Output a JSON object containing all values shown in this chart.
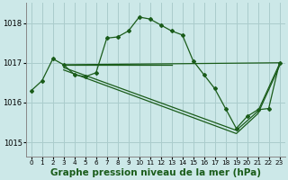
{
  "background_color": "#cce8e8",
  "grid_color": "#aacccc",
  "line_color": "#1a5c1a",
  "xlabel": "Graphe pression niveau de la mer (hPa)",
  "xlabel_fontsize": 7.5,
  "xlim": [
    -0.5,
    23.5
  ],
  "ylim": [
    1014.65,
    1018.5
  ],
  "yticks": [
    1015,
    1016,
    1017,
    1018
  ],
  "xticks": [
    0,
    1,
    2,
    3,
    4,
    5,
    6,
    7,
    8,
    9,
    10,
    11,
    12,
    13,
    14,
    15,
    16,
    17,
    18,
    19,
    20,
    21,
    22,
    23
  ],
  "curve1_x": [
    0,
    1,
    2,
    3,
    4,
    5,
    6,
    7,
    8,
    9,
    10,
    11,
    12,
    13,
    14,
    15,
    16,
    17,
    18,
    19,
    20,
    21,
    22,
    23
  ],
  "curve1_y": [
    1016.3,
    1016.55,
    1017.1,
    1016.95,
    1016.7,
    1016.65,
    1016.75,
    1017.62,
    1017.65,
    1017.8,
    1018.15,
    1018.1,
    1017.95,
    1017.8,
    1017.7,
    1017.05,
    1016.7,
    1016.35,
    1015.85,
    1015.35,
    1015.65,
    1015.82,
    1015.85,
    1017.0
  ],
  "flat_line_x": [
    3,
    13
  ],
  "flat_line_y": [
    1016.95,
    1016.95
  ],
  "diag_line1_x": [
    3,
    23
  ],
  "diag_line1_y": [
    1016.95,
    1017.0
  ],
  "diag_line2_x": [
    3,
    19,
    21,
    23
  ],
  "diag_line2_y": [
    1016.88,
    1015.3,
    1015.78,
    1016.97
  ],
  "diag_line3_x": [
    3,
    19,
    21,
    23
  ],
  "diag_line3_y": [
    1016.82,
    1015.22,
    1015.72,
    1016.92
  ]
}
